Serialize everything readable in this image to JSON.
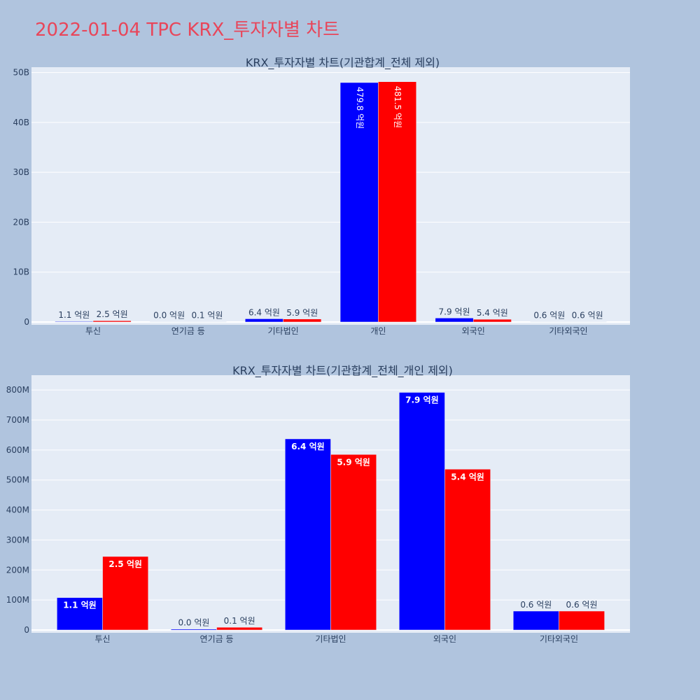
{
  "page": {
    "title": "2022-01-04 TPC KRX_투자자별 차트",
    "background": "#b0c4de",
    "title_color": "#e8465a"
  },
  "colors": {
    "plot_bg": "#e5ecf6",
    "gridline": "#ffffff",
    "axis_text": "#2a3f5f",
    "series_1": "#0000ff",
    "series_2": "#ff0000"
  },
  "chart_data": [
    {
      "type": "bar",
      "barmode": "group",
      "title": "KRX_투자자별 차트(기관합계_전체 제외)",
      "categories": [
        "투신",
        "연기금 등",
        "기타법인",
        "개인",
        "외국인",
        "기타외국인"
      ],
      "series": [
        {
          "color": "#0000ff",
          "values": [
            110000000,
            0,
            640000000,
            47980000000,
            790000000,
            60000000
          ],
          "labels": [
            "1.1 억원",
            "0.0 억원",
            "6.4 억원",
            "479.8 억원",
            "7.9 억원",
            "0.6 억원"
          ]
        },
        {
          "color": "#ff0000",
          "values": [
            250000000,
            10000000,
            590000000,
            48150000000,
            540000000,
            60000000
          ],
          "labels": [
            "2.5 억원",
            "0.1 억원",
            "5.9 억원",
            "481.5 억원",
            "5.4 억원",
            "0.6 억원"
          ]
        }
      ],
      "ylim": [
        0,
        50500000000
      ],
      "yticks": [
        0,
        10000000000,
        20000000000,
        30000000000,
        40000000000,
        50000000000
      ],
      "ytick_labels": [
        "0",
        "10B",
        "20B",
        "30B",
        "40B",
        "50B"
      ],
      "grid": true,
      "legend": "none"
    },
    {
      "type": "bar",
      "barmode": "group",
      "title": "KRX_투자자별 차트(기관합계_전체_개인 제외)",
      "categories": [
        "투신",
        "연기금 등",
        "기타법인",
        "외국인",
        "기타외국인"
      ],
      "series": [
        {
          "color": "#0000ff",
          "values": [
            108000000,
            3000000,
            637000000,
            792000000,
            63000000
          ],
          "labels": [
            "1.1 억원",
            "0.0 억원",
            "6.4 억원",
            "7.9 억원",
            "0.6 억원"
          ]
        },
        {
          "color": "#ff0000",
          "values": [
            245000000,
            9000000,
            585000000,
            536000000,
            63000000
          ],
          "labels": [
            "2.5 억원",
            "0.1 억원",
            "5.9 억원",
            "5.4 억원",
            "0.6 억원"
          ]
        }
      ],
      "ylim": [
        0,
        840000000
      ],
      "yticks": [
        0,
        100000000,
        200000000,
        300000000,
        400000000,
        500000000,
        600000000,
        700000000,
        800000000
      ],
      "ytick_labels": [
        "0",
        "100M",
        "200M",
        "300M",
        "400M",
        "500M",
        "600M",
        "700M",
        "800M"
      ],
      "grid": true,
      "legend": "none"
    }
  ]
}
